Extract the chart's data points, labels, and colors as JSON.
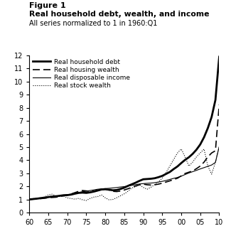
{
  "title_line1": "Figure 1",
  "title_line2": "Real household debt, wealth, and income",
  "title_line3": "All series normalized to 1 in 1960:Q1",
  "xlim": [
    1960,
    2010
  ],
  "ylim": [
    0,
    12
  ],
  "xticks": [
    1960,
    1965,
    1970,
    1975,
    1980,
    1985,
    1990,
    1995,
    2000,
    2005,
    2010
  ],
  "xtick_labels": [
    "60",
    "65",
    "70",
    "75",
    "80",
    "85",
    "90",
    "95",
    "00",
    "05",
    "10"
  ],
  "yticks": [
    0,
    1,
    2,
    3,
    4,
    5,
    6,
    7,
    8,
    9,
    10,
    11,
    12
  ],
  "years": [
    1960,
    1961,
    1962,
    1963,
    1964,
    1965,
    1966,
    1967,
    1968,
    1969,
    1970,
    1971,
    1972,
    1973,
    1974,
    1975,
    1976,
    1977,
    1978,
    1979,
    1980,
    1981,
    1982,
    1983,
    1984,
    1985,
    1986,
    1987,
    1988,
    1989,
    1990,
    1991,
    1992,
    1993,
    1994,
    1995,
    1996,
    1997,
    1998,
    1999,
    2000,
    2001,
    2002,
    2003,
    2004,
    2005,
    2006,
    2007,
    2008,
    2009,
    2010
  ],
  "household_debt": [
    1.0,
    1.03,
    1.06,
    1.1,
    1.14,
    1.18,
    1.22,
    1.24,
    1.28,
    1.32,
    1.33,
    1.37,
    1.44,
    1.5,
    1.52,
    1.5,
    1.54,
    1.6,
    1.68,
    1.76,
    1.78,
    1.74,
    1.7,
    1.72,
    1.8,
    1.9,
    2.04,
    2.16,
    2.28,
    2.42,
    2.54,
    2.56,
    2.58,
    2.62,
    2.7,
    2.8,
    2.95,
    3.1,
    3.32,
    3.52,
    3.78,
    4.02,
    4.22,
    4.48,
    4.8,
    5.2,
    5.75,
    6.45,
    7.3,
    8.6,
    11.9
  ],
  "housing_wealth": [
    1.0,
    1.02,
    1.04,
    1.06,
    1.09,
    1.13,
    1.15,
    1.17,
    1.22,
    1.28,
    1.35,
    1.42,
    1.52,
    1.62,
    1.68,
    1.65,
    1.62,
    1.64,
    1.7,
    1.75,
    1.78,
    1.72,
    1.62,
    1.6,
    1.64,
    1.72,
    1.82,
    1.93,
    2.03,
    2.12,
    2.17,
    2.12,
    2.1,
    2.12,
    2.17,
    2.24,
    2.33,
    2.42,
    2.52,
    2.62,
    2.8,
    2.98,
    3.08,
    3.18,
    3.35,
    3.55,
    3.85,
    4.25,
    4.55,
    4.72,
    8.25
  ],
  "disposable_income": [
    1.0,
    1.03,
    1.06,
    1.09,
    1.13,
    1.17,
    1.2,
    1.23,
    1.28,
    1.33,
    1.36,
    1.41,
    1.47,
    1.53,
    1.59,
    1.63,
    1.68,
    1.73,
    1.78,
    1.81,
    1.83,
    1.85,
    1.88,
    1.91,
    1.95,
    1.98,
    2.03,
    2.08,
    2.13,
    2.18,
    2.21,
    2.23,
    2.25,
    2.28,
    2.33,
    2.38,
    2.45,
    2.53,
    2.61,
    2.68,
    2.78,
    2.9,
    3.02,
    3.12,
    3.22,
    3.33,
    3.43,
    3.53,
    3.63,
    3.83,
    5.05
  ],
  "stock_wealth": [
    1.0,
    1.06,
    1.1,
    1.12,
    1.18,
    1.35,
    1.4,
    1.28,
    1.22,
    1.25,
    1.12,
    1.07,
    1.02,
    1.08,
    0.97,
    0.92,
    1.08,
    1.18,
    1.22,
    1.34,
    1.12,
    0.97,
    1.0,
    1.13,
    1.28,
    1.43,
    1.63,
    1.88,
    1.98,
    2.12,
    1.92,
    1.78,
    1.93,
    2.13,
    2.33,
    2.63,
    3.05,
    3.55,
    4.05,
    4.55,
    4.85,
    4.25,
    3.55,
    3.85,
    4.25,
    4.55,
    4.85,
    3.55,
    2.93,
    3.85,
    5.05
  ],
  "legend_labels": [
    "Real household debt",
    "Real housing wealth",
    "Real disposable income",
    "Real stock wealth"
  ]
}
